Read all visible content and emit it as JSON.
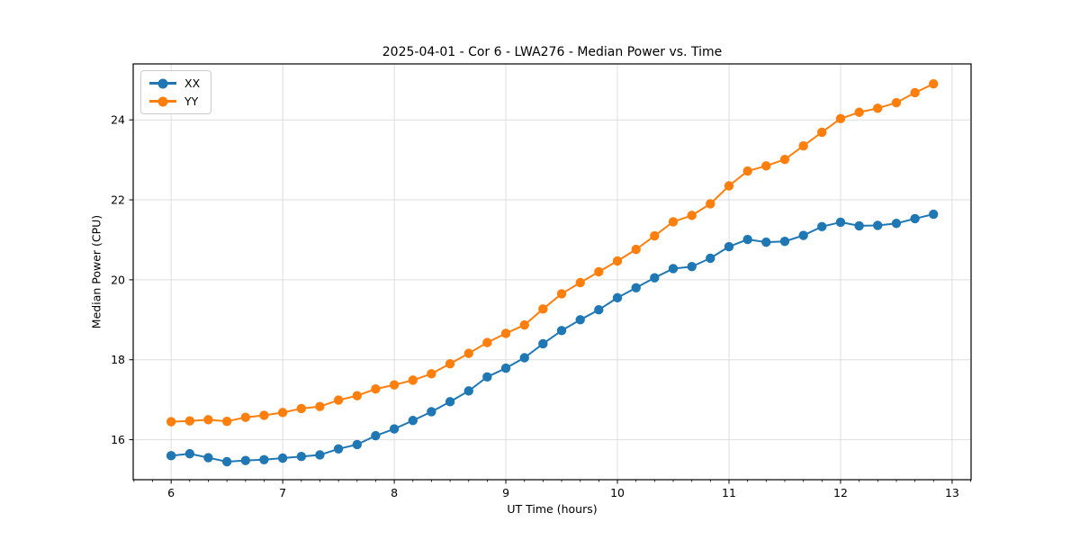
{
  "chart_data": {
    "type": "line",
    "title": "2025-04-01 - Cor 6 - LWA276 - Median Power vs. Time",
    "xlabel": "UT Time (hours)",
    "ylabel": "Median Power (CPU)",
    "xlim": [
      5.66,
      13.17
    ],
    "ylim": [
      15.0,
      25.4
    ],
    "x_ticks": [
      6,
      7,
      8,
      9,
      10,
      11,
      12,
      13
    ],
    "y_ticks": [
      16,
      18,
      20,
      22,
      24
    ],
    "x_minor_step": 0.16667,
    "grid": true,
    "grid_color": "#dedede",
    "legend_position": "upper left",
    "marker": "circle",
    "x": [
      6.0,
      6.167,
      6.333,
      6.5,
      6.667,
      6.833,
      7.0,
      7.167,
      7.333,
      7.5,
      7.667,
      7.833,
      8.0,
      8.167,
      8.333,
      8.5,
      8.667,
      8.833,
      9.0,
      9.167,
      9.333,
      9.5,
      9.667,
      9.833,
      10.0,
      10.167,
      10.333,
      10.5,
      10.667,
      10.833,
      11.0,
      11.167,
      11.333,
      11.5,
      11.667,
      11.833,
      12.0,
      12.167,
      12.333,
      12.5,
      12.667,
      12.833
    ],
    "series": [
      {
        "name": "XX",
        "color": "#1f77b4",
        "values": [
          15.6,
          15.65,
          15.55,
          15.45,
          15.48,
          15.5,
          15.54,
          15.58,
          15.62,
          15.77,
          15.88,
          16.1,
          16.27,
          16.48,
          16.7,
          16.95,
          17.22,
          17.57,
          17.79,
          18.05,
          18.4,
          18.73,
          19.0,
          19.25,
          19.55,
          19.8,
          20.05,
          20.28,
          20.33,
          20.54,
          20.83,
          21.01,
          20.94,
          20.96,
          21.11,
          21.33,
          21.44,
          21.35,
          21.36,
          21.41,
          21.53,
          21.64
        ]
      },
      {
        "name": "YY",
        "color": "#ff7f0e",
        "values": [
          16.45,
          16.47,
          16.5,
          16.46,
          16.56,
          16.61,
          16.68,
          16.78,
          16.83,
          16.99,
          17.1,
          17.27,
          17.37,
          17.49,
          17.65,
          17.9,
          18.16,
          18.43,
          18.66,
          18.87,
          19.27,
          19.65,
          19.93,
          20.2,
          20.47,
          20.76,
          21.1,
          21.45,
          21.61,
          21.9,
          22.35,
          22.72,
          22.85,
          23.01,
          23.35,
          23.69,
          24.03,
          24.19,
          24.29,
          24.43,
          24.68,
          24.9
        ]
      }
    ]
  }
}
